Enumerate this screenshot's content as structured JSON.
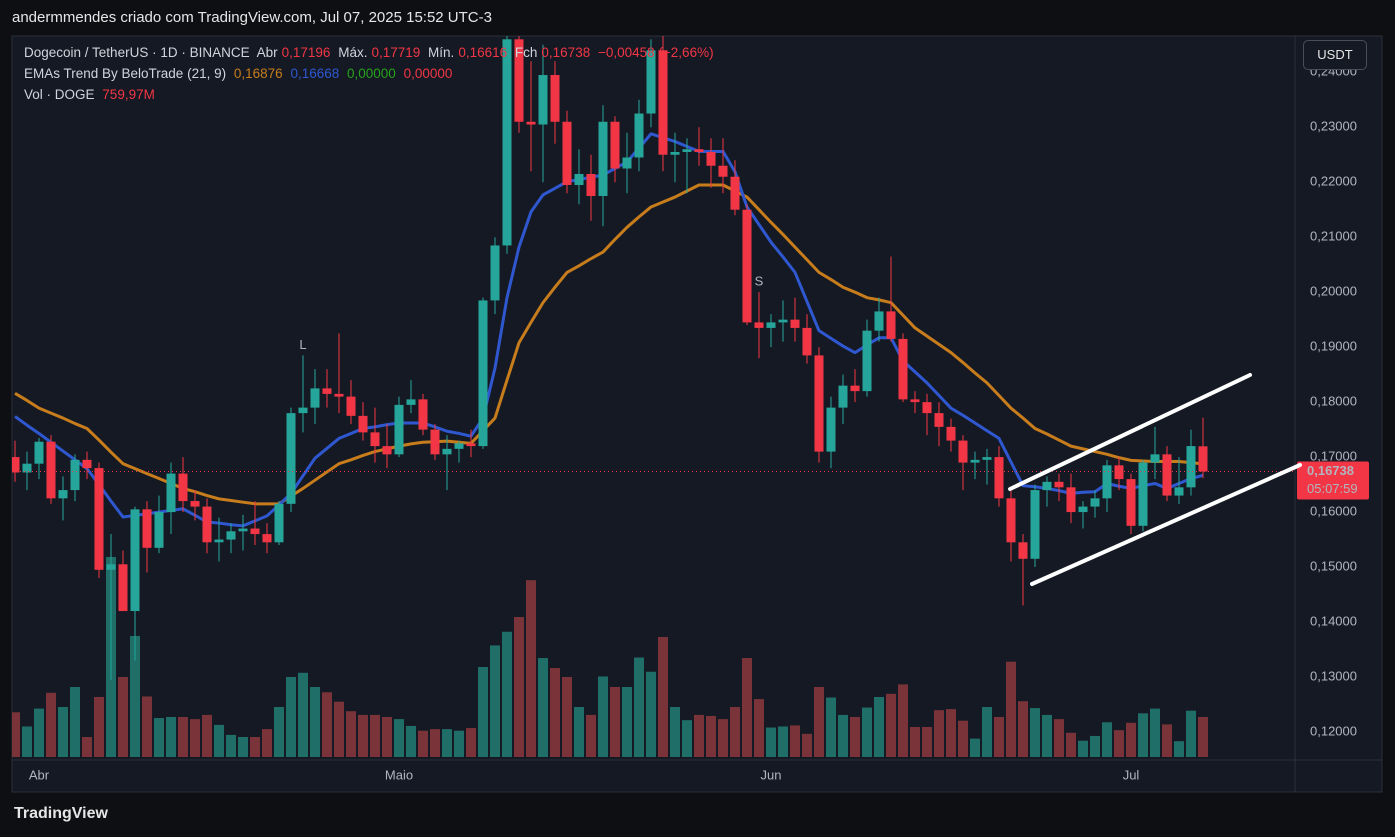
{
  "chart_data": {
    "type": "candlestick",
    "title": "andermmendes criado com TradingView.com, Jul 07, 2025 15:52 UTC-3",
    "brand": "TradingView",
    "currency_button": "USDT",
    "legend": {
      "symbol": "Dogecoin / TetherUS · 1D · BINANCE",
      "open_label": "Abr",
      "open": "0,17196",
      "high_label": "Máx.",
      "high": "0,17719",
      "low_label": "Mín.",
      "low": "0,16616",
      "close_label": "Fch",
      "close": "0,16738",
      "change": "−0,00458 (−2,66%)",
      "indicator": "EMAs Trend By BeloTrade (21, 9)",
      "indicator_extra": [
        "0,00000",
        "0,00000"
      ],
      "volume_label": "Vol · DOGE",
      "volume": "759,97M"
    },
    "price_label": "0,16738",
    "countdown": "05:07:59",
    "up_color": "#26a69a",
    "down_color": "#f23645",
    "volume_up_color": "#1f6e68",
    "volume_down_color": "#7a3439",
    "grid": false,
    "ylim": [
      0.1149,
      0.2466
    ],
    "yticks": [
      {
        "value": 0.12,
        "label": "0,12000"
      },
      {
        "value": 0.13,
        "label": "0,13000"
      },
      {
        "value": 0.14,
        "label": "0,14000"
      },
      {
        "value": 0.15,
        "label": "0,15000"
      },
      {
        "value": 0.16,
        "label": "0,16000"
      },
      {
        "value": 0.17,
        "label": "0,17000"
      },
      {
        "value": 0.18,
        "label": "0,18000"
      },
      {
        "value": 0.19,
        "label": "0,19000"
      },
      {
        "value": 0.2,
        "label": "0,20000"
      },
      {
        "value": 0.21,
        "label": "0,21000"
      },
      {
        "value": 0.22,
        "label": "0,22000"
      },
      {
        "value": 0.23,
        "label": "0,23000"
      },
      {
        "value": 0.24,
        "label": "0,24000"
      }
    ],
    "categories": [
      null,
      null,
      "Abr",
      null,
      null,
      null,
      null,
      null,
      null,
      null,
      null,
      null,
      null,
      null,
      null,
      null,
      null,
      null,
      null,
      null,
      null,
      null,
      null,
      null,
      null,
      null,
      null,
      null,
      null,
      null,
      null,
      null,
      "Maio",
      null,
      null,
      null,
      null,
      null,
      null,
      null,
      null,
      null,
      null,
      null,
      null,
      null,
      null,
      null,
      null,
      null,
      null,
      null,
      null,
      null,
      null,
      null,
      null,
      null,
      null,
      null,
      null,
      null,
      null,
      "Jun",
      null,
      null,
      null,
      null,
      null,
      null,
      null,
      null,
      null,
      null,
      null,
      null,
      null,
      null,
      null,
      null,
      null,
      null,
      null,
      null,
      null,
      null,
      null,
      null,
      null,
      null,
      null,
      null,
      null,
      "Jul",
      null,
      null,
      null,
      null,
      null,
      null
    ],
    "open": [
      0.17,
      0.1672,
      0.1688,
      0.1728,
      0.1625,
      0.164,
      0.1695,
      0.168,
      0.1495,
      0.1505,
      0.142,
      0.1605,
      0.1535,
      0.16,
      0.167,
      0.162,
      0.161,
      0.1545,
      0.155,
      0.1565,
      0.157,
      0.156,
      0.1545,
      0.1615,
      0.178,
      0.179,
      0.1825,
      0.1815,
      0.181,
      0.1775,
      0.1745,
      0.172,
      0.1705,
      0.1795,
      0.1805,
      0.175,
      0.1705,
      0.1715,
      0.1725,
      0.172,
      0.1985,
      0.2085,
      0.246,
      0.231,
      0.2305,
      0.2395,
      0.231,
      0.2195,
      0.2215,
      0.2175,
      0.231,
      0.2225,
      0.2245,
      0.2325,
      0.244,
      0.225,
      0.2255,
      0.226,
      0.2255,
      0.223,
      0.221,
      0.215,
      0.1945,
      0.1935,
      0.1945,
      0.195,
      0.1935,
      0.1885,
      0.171,
      0.179,
      0.183,
      0.182,
      0.193,
      0.1965,
      0.1915,
      0.1805,
      0.18,
      0.178,
      0.1755,
      0.173,
      0.169,
      0.1695,
      0.17,
      0.1625,
      0.1545,
      0.1515,
      0.164,
      0.1655,
      0.1645,
      0.16,
      0.161,
      0.1625,
      0.1685,
      0.166,
      0.1575,
      0.169,
      0.1705,
      0.163,
      0.1645,
      0.17196
    ],
    "high": [
      0.173,
      0.171,
      0.1735,
      0.174,
      0.1665,
      0.1705,
      0.171,
      0.169,
      0.156,
      0.153,
      0.161,
      0.162,
      0.163,
      0.169,
      0.17,
      0.164,
      0.1625,
      0.159,
      0.158,
      0.1595,
      0.162,
      0.158,
      0.162,
      0.179,
      0.1885,
      0.186,
      0.186,
      0.1925,
      0.184,
      0.18,
      0.179,
      0.176,
      0.181,
      0.184,
      0.1815,
      0.176,
      0.174,
      0.173,
      0.175,
      0.199,
      0.21,
      0.25,
      0.256,
      0.242,
      0.245,
      0.242,
      0.233,
      0.226,
      0.225,
      0.234,
      0.232,
      0.229,
      0.235,
      0.246,
      0.25,
      0.229,
      0.228,
      0.23,
      0.228,
      0.228,
      0.224,
      0.216,
      0.2,
      0.196,
      0.1985,
      0.199,
      0.196,
      0.19,
      0.181,
      0.185,
      0.186,
      0.195,
      0.199,
      0.2065,
      0.1925,
      0.182,
      0.1815,
      0.18,
      0.177,
      0.174,
      0.171,
      0.1715,
      0.172,
      0.164,
      0.156,
      0.165,
      0.1665,
      0.167,
      0.167,
      0.162,
      0.164,
      0.1695,
      0.17,
      0.167,
      0.1695,
      0.1755,
      0.172,
      0.17,
      0.175,
      0.17719
    ],
    "low": [
      0.1655,
      0.164,
      0.166,
      0.1615,
      0.1585,
      0.162,
      0.166,
      0.148,
      0.1295,
      0.142,
      0.133,
      0.149,
      0.1525,
      0.156,
      0.16,
      0.1585,
      0.1525,
      0.151,
      0.1525,
      0.153,
      0.154,
      0.1525,
      0.154,
      0.16,
      0.1745,
      0.176,
      0.179,
      0.178,
      0.176,
      0.173,
      0.169,
      0.168,
      0.17,
      0.178,
      0.174,
      0.1695,
      0.164,
      0.169,
      0.17,
      0.1715,
      0.196,
      0.207,
      0.229,
      0.222,
      0.22,
      0.227,
      0.218,
      0.216,
      0.213,
      0.212,
      0.22,
      0.218,
      0.222,
      0.23,
      0.222,
      0.22,
      0.218,
      0.223,
      0.219,
      0.218,
      0.214,
      0.194,
      0.188,
      0.19,
      0.191,
      0.191,
      0.187,
      0.169,
      0.168,
      0.176,
      0.18,
      0.181,
      0.191,
      0.191,
      0.18,
      0.178,
      0.174,
      0.172,
      0.171,
      0.164,
      0.166,
      0.165,
      0.161,
      0.151,
      0.143,
      0.15,
      0.161,
      0.162,
      0.158,
      0.157,
      0.159,
      0.16,
      0.164,
      0.156,
      0.1565,
      0.166,
      0.162,
      0.1615,
      0.163,
      0.16616
    ],
    "close": [
      0.1672,
      0.1688,
      0.1728,
      0.1625,
      0.164,
      0.1695,
      0.168,
      0.1495,
      0.1505,
      0.142,
      0.1605,
      0.1535,
      0.16,
      0.167,
      0.162,
      0.161,
      0.1545,
      0.155,
      0.1565,
      0.157,
      0.156,
      0.1545,
      0.1615,
      0.178,
      0.179,
      0.1825,
      0.1815,
      0.181,
      0.1775,
      0.1745,
      0.172,
      0.1705,
      0.1795,
      0.1805,
      0.175,
      0.1705,
      0.1715,
      0.1725,
      0.172,
      0.1985,
      0.2085,
      0.246,
      0.231,
      0.2305,
      0.2395,
      0.231,
      0.2195,
      0.2215,
      0.2175,
      0.231,
      0.2225,
      0.2245,
      0.2325,
      0.244,
      0.225,
      0.2255,
      0.226,
      0.2255,
      0.223,
      0.221,
      0.215,
      0.1945,
      0.1935,
      0.1945,
      0.195,
      0.1935,
      0.1885,
      0.171,
      0.179,
      0.183,
      0.182,
      0.193,
      0.1965,
      0.1915,
      0.1805,
      0.18,
      0.178,
      0.1755,
      0.173,
      0.169,
      0.1695,
      0.17,
      0.1625,
      0.1545,
      0.1515,
      0.164,
      0.1655,
      0.1645,
      0.16,
      0.161,
      0.1625,
      0.1685,
      0.166,
      0.1575,
      0.169,
      0.1705,
      0.163,
      0.1645,
      0.172,
      0.16738
    ],
    "volume": [
      850,
      580,
      920,
      1220,
      950,
      1330,
      380,
      1140,
      3800,
      1520,
      2300,
      1150,
      740,
      760,
      760,
      720,
      800,
      610,
      420,
      380,
      380,
      530,
      950,
      1520,
      1600,
      1330,
      1230,
      1050,
      870,
      800,
      800,
      760,
      720,
      590,
      500,
      530,
      530,
      500,
      550,
      1710,
      2120,
      2380,
      2660,
      3360,
      1880,
      1690,
      1520,
      950,
      800,
      1530,
      1330,
      1330,
      1890,
      1620,
      2280,
      950,
      700,
      800,
      780,
      720,
      950,
      1880,
      1100,
      560,
      580,
      600,
      440,
      1330,
      1130,
      800,
      760,
      940,
      1140,
      1200,
      1380,
      570,
      570,
      890,
      910,
      690,
      350,
      950,
      760,
      1810,
      1060,
      930,
      800,
      720,
      460,
      310,
      400,
      660,
      510,
      650,
      830,
      920,
      620,
      300,
      880,
      759.97
    ],
    "signals": [
      null,
      null,
      null,
      null,
      null,
      null,
      null,
      null,
      null,
      null,
      null,
      null,
      null,
      null,
      null,
      null,
      null,
      null,
      null,
      null,
      null,
      null,
      null,
      null,
      "L",
      null,
      null,
      null,
      null,
      null,
      null,
      null,
      null,
      null,
      null,
      null,
      null,
      null,
      null,
      null,
      null,
      null,
      null,
      null,
      null,
      null,
      null,
      null,
      null,
      null,
      null,
      null,
      null,
      null,
      null,
      null,
      null,
      null,
      null,
      null,
      null,
      null,
      "S",
      null,
      null,
      null,
      null,
      null,
      null,
      null,
      null,
      null,
      null,
      null,
      null,
      null,
      null,
      null,
      null,
      null,
      null,
      null,
      null,
      null,
      null,
      null,
      null,
      null,
      null,
      null,
      null,
      null,
      null,
      null,
      null,
      null,
      null,
      null,
      null,
      null
    ],
    "series": [
      {
        "color": "#c77d1c",
        "value_label": "0,16876",
        "values": [
          0.1816,
          0.1803,
          0.1789,
          0.178,
          0.1771,
          0.1761,
          0.1752,
          0.1731,
          0.1709,
          0.1688,
          0.1679,
          0.167,
          0.1661,
          0.1652,
          0.1643,
          0.1637,
          0.163,
          0.1624,
          0.1621,
          0.1618,
          0.1615,
          0.1615,
          0.1615,
          0.1629,
          0.1643,
          0.1658,
          0.1673,
          0.1688,
          0.1695,
          0.1703,
          0.171,
          0.1715,
          0.172,
          0.1724,
          0.1727,
          0.1728,
          0.1729,
          0.1727,
          0.1725,
          0.1748,
          0.1771,
          0.184,
          0.1908,
          0.1945,
          0.1981,
          0.2009,
          0.2036,
          0.2048,
          0.2061,
          0.2073,
          0.2096,
          0.2118,
          0.2137,
          0.2155,
          0.2164,
          0.2173,
          0.2184,
          0.2195,
          0.2195,
          0.2195,
          0.2184,
          0.2173,
          0.215,
          0.2127,
          0.2105,
          0.2082,
          0.2059,
          0.2036,
          0.2023,
          0.2009,
          0.2,
          0.199,
          0.1986,
          0.1981,
          0.1958,
          0.1935,
          0.192,
          0.1905,
          0.189,
          0.1872,
          0.1853,
          0.1835,
          0.1812,
          0.1789,
          0.1771,
          0.1752,
          0.1742,
          0.1731,
          0.172,
          0.1715,
          0.171,
          0.1705,
          0.1699,
          0.1694,
          0.1693,
          0.1692,
          0.1692,
          0.1692,
          0.169,
          0.16876
        ]
      },
      {
        "color": "#2f58d0",
        "value_label": "0,16668",
        "values": [
          0.1774,
          0.1758,
          0.1743,
          0.1727,
          0.1711,
          0.1695,
          0.1679,
          0.165,
          0.162,
          0.1591,
          0.1594,
          0.1597,
          0.16,
          0.1603,
          0.1606,
          0.1594,
          0.1582,
          0.158,
          0.1577,
          0.1575,
          0.1584,
          0.1593,
          0.1613,
          0.1634,
          0.1666,
          0.1698,
          0.1716,
          0.1734,
          0.1743,
          0.1752,
          0.1755,
          0.1759,
          0.1762,
          0.1762,
          0.1762,
          0.1755,
          0.1747,
          0.1743,
          0.1738,
          0.1771,
          0.1862,
          0.199,
          0.2082,
          0.2146,
          0.2177,
          0.2189,
          0.2201,
          0.2205,
          0.2209,
          0.2213,
          0.2225,
          0.2237,
          0.2262,
          0.2288,
          0.2281,
          0.2274,
          0.2265,
          0.2256,
          0.2256,
          0.2256,
          0.2219,
          0.2155,
          0.2123,
          0.2091,
          0.2064,
          0.2036,
          0.1983,
          0.193,
          0.1916,
          0.1902,
          0.189,
          0.1904,
          0.1917,
          0.1917,
          0.1875,
          0.1855,
          0.1835,
          0.1812,
          0.1789,
          0.1776,
          0.1762,
          0.1748,
          0.1734,
          0.1691,
          0.1648,
          0.1646,
          0.1643,
          0.1639,
          0.1634,
          0.1636,
          0.1637,
          0.1652,
          0.1647,
          0.1643,
          0.1648,
          0.1652,
          0.1643,
          0.1652,
          0.1661,
          0.16668
        ]
      }
    ]
  }
}
